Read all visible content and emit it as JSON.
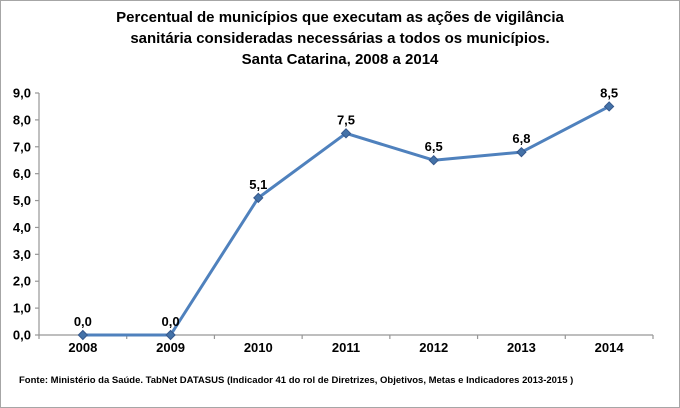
{
  "chart_data": {
    "type": "line",
    "title_lines": [
      "Percentual de municípios que executam as ações de vigilância",
      "sanitária consideradas necessárias a todos os municípios.",
      "Santa Catarina, 2008 a 2014"
    ],
    "categories": [
      "2008",
      "2009",
      "2010",
      "2011",
      "2012",
      "2013",
      "2014"
    ],
    "series": [
      {
        "name": "Percentual de municípios",
        "values": [
          0.0,
          0.0,
          5.1,
          7.5,
          6.5,
          6.8,
          8.5
        ],
        "value_labels": [
          "0,0",
          "0,0",
          "5,1",
          "7,5",
          "6,5",
          "6,8",
          "8,5"
        ]
      }
    ],
    "y_tick_labels": [
      "0,0",
      "1,0",
      "2,0",
      "3,0",
      "4,0",
      "5,0",
      "6,0",
      "7,0",
      "8,0",
      "9,0"
    ],
    "ylim": [
      0,
      9
    ],
    "xlabel": "",
    "ylabel": "",
    "grid": false,
    "legend": "none",
    "marker": "diamond",
    "colors": {
      "series_line": "#4F81BD",
      "marker_fill": "#4472A8",
      "marker_stroke": "#36588C",
      "axis": "#969696",
      "text": "#000000",
      "frame_border": "#A6A6A6",
      "background": "#FFFFFF"
    },
    "source_note": "Fonte: Ministério da Saúde. TabNet DATASUS (Indicador 41 do rol de Diretrizes, Objetivos, Metas e Indicadores 2013-2015 )"
  }
}
